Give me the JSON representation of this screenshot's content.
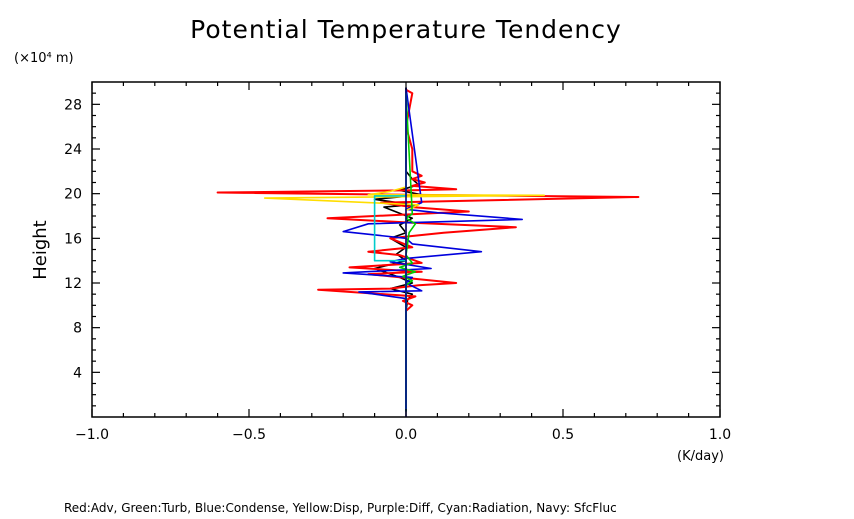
{
  "chart_data": {
    "type": "line",
    "title": "Potential Temperature Tendency",
    "ylabel": "Height",
    "y_unit": "(×10⁴ m)",
    "x_unit": "(K/day)",
    "footnote": "Red:Adv, Green:Turb, Blue:Condense, Yellow:Disp, Purple:Diff, Cyan:Radiation, Navy: SfcFluc",
    "xlim": [
      -1.0,
      1.0
    ],
    "ylim": [
      0,
      30
    ],
    "xticks": [
      "−1.0",
      "−0.5",
      "0.0",
      "0.5",
      "1.0"
    ],
    "yticks": [
      "4",
      "8",
      "12",
      "16",
      "20",
      "24",
      "28"
    ],
    "grid": false,
    "series": [
      {
        "color": "#000000",
        "points": [
          [
            0.0,
            0.5
          ],
          [
            0.0,
            9.5
          ],
          [
            0.005,
            10.5
          ],
          [
            0.02,
            11.0
          ],
          [
            -0.05,
            11.5
          ],
          [
            0.02,
            12.0
          ],
          [
            -0.02,
            12.5
          ],
          [
            -0.1,
            13.3
          ],
          [
            0.0,
            14.0
          ],
          [
            -0.03,
            14.6
          ],
          [
            0.0,
            15.2
          ],
          [
            -0.05,
            16.0
          ],
          [
            0.0,
            16.5
          ],
          [
            -0.02,
            17.2
          ],
          [
            0.02,
            17.8
          ],
          [
            -0.07,
            18.8
          ],
          [
            0.02,
            19.0
          ],
          [
            -0.1,
            19.5
          ],
          [
            0.05,
            19.9
          ],
          [
            -0.02,
            20.3
          ],
          [
            0.04,
            20.8
          ],
          [
            0.02,
            21.3
          ],
          [
            0.0,
            22.0
          ],
          [
            0.0,
            29.5
          ]
        ]
      },
      {
        "color": "#ff0000",
        "points": [
          [
            0.0,
            0.5
          ],
          [
            0.0,
            9.5
          ],
          [
            0.02,
            10.0
          ],
          [
            -0.01,
            10.4
          ],
          [
            0.03,
            10.8
          ],
          [
            -0.28,
            11.4
          ],
          [
            -0.05,
            11.5
          ],
          [
            0.04,
            11.8
          ],
          [
            0.16,
            12.0
          ],
          [
            -0.12,
            12.8
          ],
          [
            0.05,
            13.0
          ],
          [
            -0.18,
            13.4
          ],
          [
            0.05,
            13.8
          ],
          [
            -0.02,
            14.5
          ],
          [
            -0.12,
            14.8
          ],
          [
            0.02,
            15.2
          ],
          [
            -0.05,
            16.0
          ],
          [
            0.12,
            16.5
          ],
          [
            0.35,
            17.0
          ],
          [
            0.02,
            17.4
          ],
          [
            -0.25,
            17.8
          ],
          [
            0.05,
            18.2
          ],
          [
            0.2,
            18.4
          ],
          [
            0.02,
            18.8
          ],
          [
            -0.08,
            19.2
          ],
          [
            0.74,
            19.7
          ],
          [
            0.0,
            19.9
          ],
          [
            -0.6,
            20.1
          ],
          [
            0.02,
            20.3
          ],
          [
            0.16,
            20.4
          ],
          [
            0.02,
            20.7
          ],
          [
            0.06,
            21.0
          ],
          [
            0.02,
            21.3
          ],
          [
            0.05,
            21.6
          ],
          [
            0.02,
            22.0
          ],
          [
            0.02,
            24.0
          ],
          [
            0.0,
            26.0
          ],
          [
            0.02,
            29.0
          ],
          [
            0.0,
            29.3
          ]
        ]
      },
      {
        "color": "#0000dd",
        "points": [
          [
            0.0,
            0.5
          ],
          [
            0.0,
            10.6
          ],
          [
            -0.15,
            11.2
          ],
          [
            0.05,
            11.3
          ],
          [
            0.0,
            12.0
          ],
          [
            0.02,
            12.5
          ],
          [
            -0.2,
            12.9
          ],
          [
            0.08,
            13.3
          ],
          [
            -0.05,
            13.9
          ],
          [
            0.0,
            14.2
          ],
          [
            0.24,
            14.8
          ],
          [
            0.02,
            15.5
          ],
          [
            0.0,
            16.0
          ],
          [
            -0.2,
            16.6
          ],
          [
            -0.12,
            17.3
          ],
          [
            0.37,
            17.7
          ],
          [
            0.1,
            18.3
          ],
          [
            0.0,
            18.6
          ],
          [
            0.05,
            19.2
          ],
          [
            0.0,
            29.5
          ]
        ]
      },
      {
        "color": "#ffdd00",
        "points": [
          [
            0.0,
            0.5
          ],
          [
            0.0,
            18.5
          ],
          [
            0.04,
            19.0
          ],
          [
            -0.45,
            19.6
          ],
          [
            0.44,
            19.85
          ],
          [
            -0.12,
            19.9
          ],
          [
            -0.05,
            20.2
          ],
          [
            0.0,
            20.6
          ],
          [
            0.0,
            29.0
          ]
        ]
      },
      {
        "color": "#00cc00",
        "points": [
          [
            0.0,
            0.5
          ],
          [
            0.0,
            11.8
          ],
          [
            0.02,
            12.2
          ],
          [
            -0.01,
            12.6
          ],
          [
            0.03,
            13.0
          ],
          [
            -0.02,
            13.4
          ],
          [
            0.02,
            13.8
          ],
          [
            0.0,
            14.5
          ],
          [
            0.01,
            16.5
          ],
          [
            0.03,
            17.3
          ],
          [
            0.0,
            17.8
          ],
          [
            0.02,
            18.2
          ],
          [
            0.0,
            29.0
          ]
        ]
      },
      {
        "color": "#00cccc",
        "points": [
          [
            0.0,
            0.5
          ],
          [
            0.0,
            14.0
          ],
          [
            -0.1,
            14.0
          ],
          [
            -0.1,
            19.8
          ],
          [
            0.0,
            19.8
          ],
          [
            0.0,
            29.0
          ]
        ]
      },
      {
        "color": "#000080",
        "points": [
          [
            0.0,
            0.0
          ],
          [
            0.0,
            29.5
          ]
        ]
      }
    ]
  }
}
